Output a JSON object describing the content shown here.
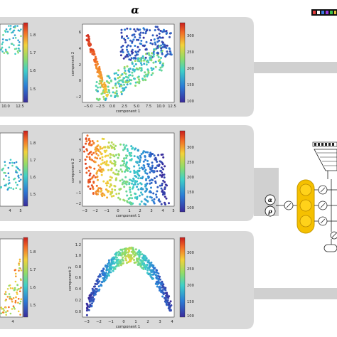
{
  "header": {
    "alpha_symbol": "α"
  },
  "panels": [
    {
      "left_colorbar_ticks": [
        "1.8",
        "1.7",
        "1.6",
        "1.5"
      ],
      "left_xticks": [
        "10.0",
        "12.5"
      ],
      "right_xlabel": "component 1",
      "right_ylabel": "component 2",
      "right_xticks": [
        "−5.0",
        "−2.5",
        "0.0",
        "2.5",
        "5.0",
        "7.5",
        "10.0",
        "12.5"
      ],
      "right_yticks": [
        "6",
        "4",
        "2",
        "0",
        "−2"
      ],
      "right_colorbar_ticks": [
        "300",
        "250",
        "200",
        "150",
        "100"
      ]
    },
    {
      "left_colorbar_ticks": [
        "1.8",
        "1.7",
        "1.6",
        "1.5"
      ],
      "left_xticks": [
        "4",
        "5"
      ],
      "right_xlabel": "component 1",
      "right_ylabel": "component 2",
      "right_xticks": [
        "−3",
        "−2",
        "−1",
        "0",
        "1",
        "2",
        "3",
        "4",
        "5"
      ],
      "right_yticks": [
        "4",
        "3",
        "2",
        "1",
        "0",
        "−1",
        "−2"
      ],
      "right_colorbar_ticks": [
        "300",
        "250",
        "200",
        "150",
        "100"
      ]
    },
    {
      "left_colorbar_ticks": [
        "1.8",
        "1.7",
        "1.6",
        "1.5"
      ],
      "left_xticks": [
        "4"
      ],
      "right_xlabel": "component 1",
      "right_ylabel": "component 2",
      "right_xticks": [
        "−3",
        "−2",
        "−1",
        "0",
        "1",
        "2",
        "3",
        "4"
      ],
      "right_yticks": [
        "1.2",
        "1.0",
        "0.8",
        "0.6",
        "0.4",
        "0.2",
        "0.0"
      ],
      "right_colorbar_ticks": [
        "300",
        "250",
        "200",
        "150",
        "100"
      ]
    }
  ],
  "network": {
    "input_alpha": "α",
    "input_rho": "ρ"
  },
  "colors": {
    "panel_bg": "#d9d9d9",
    "connector": "#d0d0d0",
    "yellow_block": "#f5c000",
    "yellow_block_edge": "#c89a00"
  },
  "icons": [
    "colormap-swatch-icon",
    "slash-circle-icon"
  ]
}
